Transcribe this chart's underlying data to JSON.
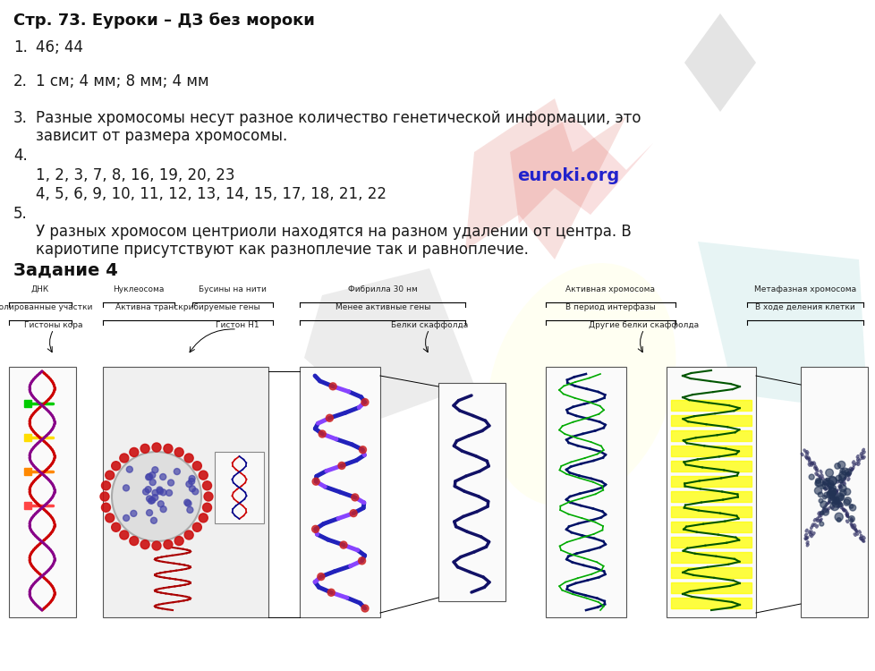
{
  "title": "Стр. 73. Еуроки – ДЗ без мороки",
  "item1_num": "1.",
  "item1_text": "46; 44",
  "item2_num": "2.",
  "item2_text": "1 см; 4 мм; 8 мм; 4 мм",
  "item3_num": "3.",
  "item3_line1": "Разные хромосомы несут разное количество генетической информации, это",
  "item3_line2": "зависит от размера хромосомы.",
  "item4_num": "4.",
  "item4_row1": "1, 2, 3, 7, 8, 16, 19, 20, 23",
  "item4_row2": "4, 5, 6, 9, 10, 11, 12, 13, 14, 15, 17, 18, 21, 22",
  "euroki_text": "euroki.org",
  "item5_num": "5.",
  "item5_line1": "У разных хромосом центриоли находятся на разном удалении от центра. В",
  "item5_line2": "кариотипе присутствуют как разноплечие так и равноплечие.",
  "zadanie4": "Задание 4",
  "top_labels": [
    "ДНК",
    "Нуклеосома",
    "Бусины на нити",
    "Фибрилла 30 нм",
    "Активная хромосома",
    "Метафазная хромосома"
  ],
  "mid_labels": [
    "Изолированные участки",
    "Активна транскрибируемые гены",
    "Менее активные гены",
    "В период интерфазы",
    "В ходе деления клетки"
  ],
  "prot_labels": [
    "Гистоны кора",
    "Гистон Н1",
    "Белки скаффолда",
    "Другие белки скаффолда"
  ],
  "bg_color": "#ffffff",
  "text_color": "#1a1a1a",
  "title_fontsize": 13,
  "body_fontsize": 12,
  "diagram_label_fontsize": 6.5,
  "euroki_color": "#2222cc",
  "euroki_fontsize": 14
}
